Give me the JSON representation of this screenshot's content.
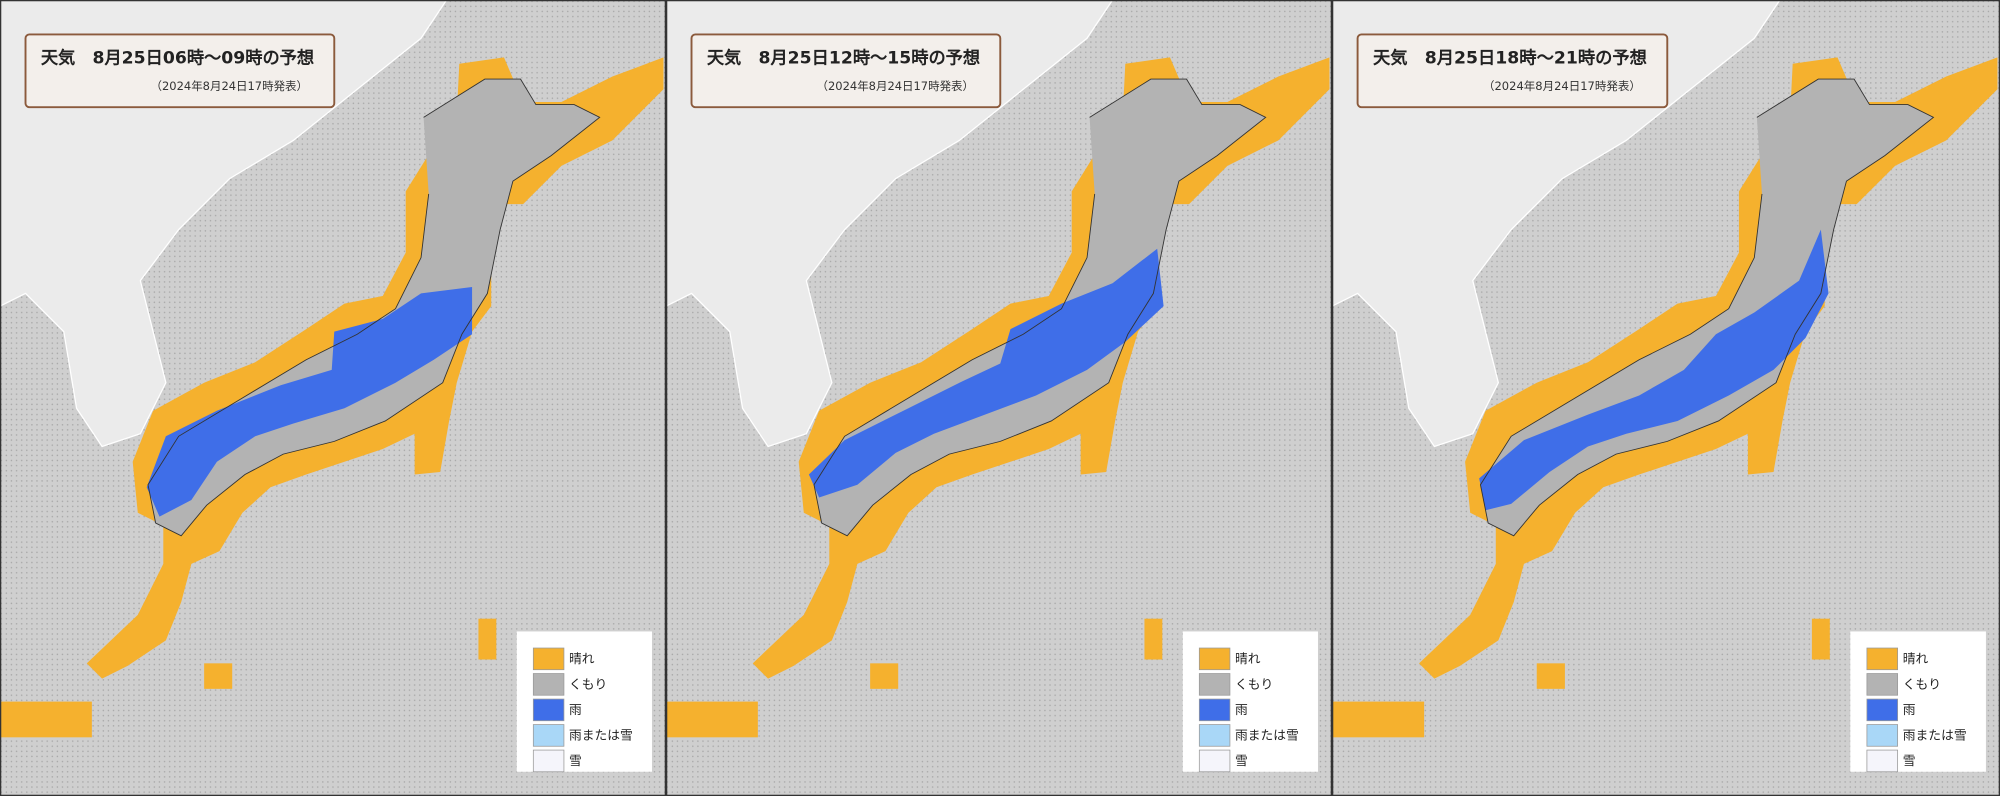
{
  "panels": [
    {
      "title": "天気　8月25日06時～09時の予想",
      "subtitle": "（2024年8月24日17時発表）"
    },
    {
      "title": "天気　8月25日12時～15時の予想",
      "subtitle": "（2024年8月24日17時発表）"
    },
    {
      "title": "天気　8月25日18時～21時の予想",
      "subtitle": "（2024年8月24日17時発表）"
    }
  ],
  "legend": [
    "晴れ",
    "くもり",
    "雨",
    "雨または雪",
    "雪"
  ]
}
